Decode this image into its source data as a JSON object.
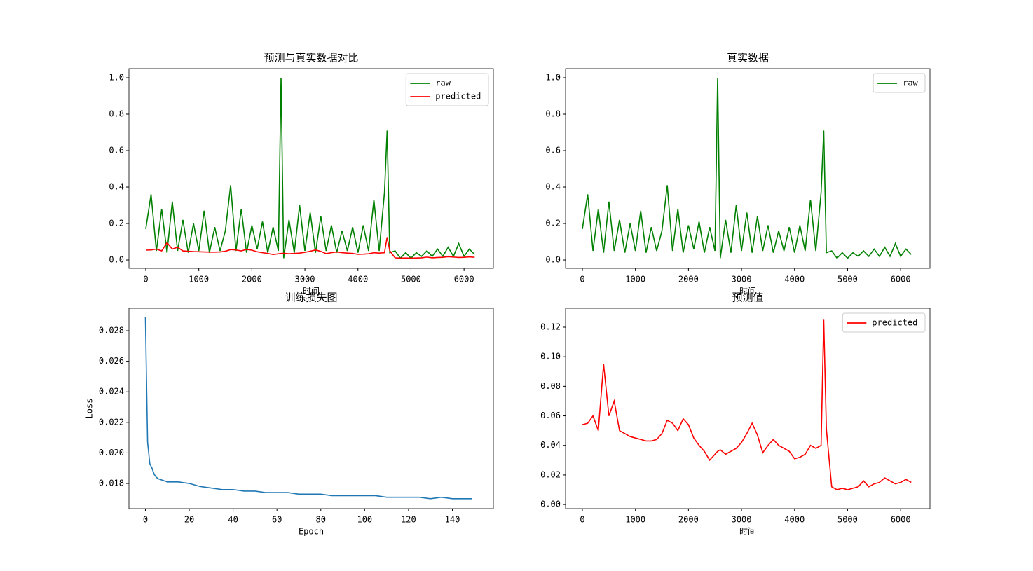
{
  "chart_data": [
    {
      "type": "line",
      "title": "预测与真实数据对比",
      "xlabel": "时间",
      "x": [
        0,
        100,
        200,
        300,
        400,
        500,
        600,
        700,
        800,
        900,
        1000,
        1100,
        1200,
        1300,
        1400,
        1500,
        1600,
        1700,
        1800,
        1900,
        2000,
        2100,
        2200,
        2300,
        2400,
        2500,
        2550,
        2600,
        2700,
        2800,
        2900,
        3000,
        3100,
        3200,
        3300,
        3400,
        3500,
        3600,
        3700,
        3800,
        3900,
        4000,
        4100,
        4200,
        4300,
        4400,
        4500,
        4550,
        4600,
        4700,
        4800,
        4900,
        5000,
        5100,
        5200,
        5300,
        5400,
        5500,
        5600,
        5700,
        5800,
        5900,
        6000,
        6100,
        6200
      ],
      "series": [
        {
          "name": "raw",
          "color": "#008000",
          "values": [
            0.17,
            0.36,
            0.05,
            0.28,
            0.04,
            0.32,
            0.05,
            0.22,
            0.04,
            0.2,
            0.05,
            0.27,
            0.04,
            0.18,
            0.05,
            0.16,
            0.41,
            0.05,
            0.28,
            0.04,
            0.19,
            0.06,
            0.21,
            0.04,
            0.18,
            0.05,
            1.0,
            0.01,
            0.22,
            0.04,
            0.3,
            0.05,
            0.26,
            0.04,
            0.24,
            0.05,
            0.19,
            0.04,
            0.16,
            0.05,
            0.18,
            0.04,
            0.19,
            0.05,
            0.33,
            0.05,
            0.37,
            0.71,
            0.04,
            0.05,
            0.01,
            0.04,
            0.01,
            0.04,
            0.02,
            0.05,
            0.02,
            0.06,
            0.02,
            0.07,
            0.02,
            0.09,
            0.02,
            0.06,
            0.03
          ]
        },
        {
          "name": "predicted",
          "color": "#ff0000",
          "values": [
            0.054,
            0.055,
            0.06,
            0.05,
            0.095,
            0.06,
            0.07,
            0.05,
            0.048,
            0.046,
            0.045,
            0.044,
            0.043,
            0.043,
            0.044,
            0.048,
            0.057,
            0.055,
            0.05,
            0.058,
            0.054,
            0.045,
            0.04,
            0.036,
            0.03,
            0.034,
            0.036,
            0.037,
            0.034,
            0.036,
            0.038,
            0.042,
            0.048,
            0.055,
            0.047,
            0.035,
            0.04,
            0.044,
            0.04,
            0.038,
            0.036,
            0.031,
            0.032,
            0.034,
            0.04,
            0.038,
            0.04,
            0.125,
            0.051,
            0.012,
            0.01,
            0.011,
            0.01,
            0.011,
            0.012,
            0.016,
            0.012,
            0.014,
            0.015,
            0.018,
            0.016,
            0.014,
            0.015,
            0.017,
            0.015
          ]
        }
      ],
      "xlim": [
        -317,
        6553
      ],
      "ylim": [
        -0.046,
        1.05
      ],
      "xticks": [
        0,
        1000,
        2000,
        3000,
        4000,
        5000,
        6000
      ],
      "yticks": [
        {
          "value": 0,
          "label": "0.0"
        },
        0.2,
        0.4,
        0.6,
        0.8,
        {
          "value": 1,
          "label": "1.0"
        }
      ],
      "legend": "upper right"
    },
    {
      "type": "line",
      "title": "真实数据",
      "xlabel": "时间",
      "x": [
        0,
        100,
        200,
        300,
        400,
        500,
        600,
        700,
        800,
        900,
        1000,
        1100,
        1200,
        1300,
        1400,
        1500,
        1600,
        1700,
        1800,
        1900,
        2000,
        2100,
        2200,
        2300,
        2400,
        2500,
        2550,
        2600,
        2700,
        2800,
        2900,
        3000,
        3100,
        3200,
        3300,
        3400,
        3500,
        3600,
        3700,
        3800,
        3900,
        4000,
        4100,
        4200,
        4300,
        4400,
        4500,
        4550,
        4600,
        4700,
        4800,
        4900,
        5000,
        5100,
        5200,
        5300,
        5400,
        5500,
        5600,
        5700,
        5800,
        5900,
        6000,
        6100,
        6200
      ],
      "series": [
        {
          "name": "raw",
          "color": "#008000",
          "values": [
            0.17,
            0.36,
            0.05,
            0.28,
            0.04,
            0.32,
            0.05,
            0.22,
            0.04,
            0.2,
            0.05,
            0.27,
            0.04,
            0.18,
            0.05,
            0.16,
            0.41,
            0.05,
            0.28,
            0.04,
            0.19,
            0.06,
            0.21,
            0.04,
            0.18,
            0.05,
            1.0,
            0.01,
            0.22,
            0.04,
            0.3,
            0.05,
            0.26,
            0.04,
            0.24,
            0.05,
            0.19,
            0.04,
            0.16,
            0.05,
            0.18,
            0.04,
            0.19,
            0.05,
            0.33,
            0.05,
            0.37,
            0.71,
            0.04,
            0.05,
            0.01,
            0.04,
            0.01,
            0.04,
            0.02,
            0.05,
            0.02,
            0.06,
            0.02,
            0.07,
            0.02,
            0.09,
            0.02,
            0.06,
            0.03
          ]
        }
      ],
      "xlim": [
        -317,
        6553
      ],
      "ylim": [
        -0.046,
        1.05
      ],
      "xticks": [
        0,
        1000,
        2000,
        3000,
        4000,
        5000,
        6000
      ],
      "yticks": [
        {
          "value": 0,
          "label": "0.0"
        },
        0.2,
        0.4,
        0.6,
        0.8,
        {
          "value": 1,
          "label": "1.0"
        }
      ],
      "legend": "upper right"
    },
    {
      "type": "line",
      "title": "训练损失图",
      "xlabel": "Epoch",
      "ylabel": "Loss",
      "x": [
        0,
        1,
        2,
        3,
        4,
        5,
        6,
        8,
        10,
        15,
        20,
        25,
        30,
        35,
        40,
        45,
        50,
        55,
        60,
        65,
        70,
        75,
        80,
        85,
        90,
        95,
        100,
        105,
        110,
        115,
        120,
        125,
        130,
        135,
        140,
        145,
        149
      ],
      "series": [
        {
          "color": "#1f77b4",
          "values": [
            0.0289,
            0.0207,
            0.0193,
            0.019,
            0.0186,
            0.0184,
            0.0183,
            0.0182,
            0.0181,
            0.0181,
            0.018,
            0.0178,
            0.0177,
            0.0176,
            0.0176,
            0.0175,
            0.0175,
            0.0174,
            0.0174,
            0.0174,
            0.0173,
            0.0173,
            0.0173,
            0.0172,
            0.0172,
            0.0172,
            0.0172,
            0.0172,
            0.0171,
            0.0171,
            0.0171,
            0.0171,
            0.017,
            0.0171,
            0.017,
            0.017,
            0.017
          ]
        }
      ],
      "xlim": [
        -7.5,
        158.7
      ],
      "ylim": [
        0.01635,
        0.02947
      ],
      "xticks": [
        0,
        20,
        40,
        60,
        80,
        100,
        120,
        140
      ],
      "yticks": [
        0.018,
        {
          "value": 0.02,
          "label": "0.020"
        },
        0.022,
        0.024,
        0.026,
        0.028
      ]
    },
    {
      "type": "line",
      "title": "预测值",
      "xlabel": "时间",
      "x": [
        0,
        100,
        200,
        300,
        400,
        500,
        600,
        700,
        800,
        900,
        1000,
        1100,
        1200,
        1300,
        1400,
        1500,
        1600,
        1700,
        1800,
        1900,
        2000,
        2100,
        2200,
        2300,
        2400,
        2500,
        2550,
        2600,
        2700,
        2800,
        2900,
        3000,
        3100,
        3200,
        3300,
        3400,
        3500,
        3600,
        3700,
        3800,
        3900,
        4000,
        4100,
        4200,
        4300,
        4400,
        4500,
        4550,
        4600,
        4700,
        4800,
        4900,
        5000,
        5100,
        5200,
        5300,
        5400,
        5500,
        5600,
        5700,
        5800,
        5900,
        6000,
        6100,
        6200
      ],
      "series": [
        {
          "name": "predicted",
          "color": "#ff0000",
          "values": [
            0.054,
            0.055,
            0.06,
            0.05,
            0.095,
            0.06,
            0.07,
            0.05,
            0.048,
            0.046,
            0.045,
            0.044,
            0.043,
            0.043,
            0.044,
            0.048,
            0.057,
            0.055,
            0.05,
            0.058,
            0.054,
            0.045,
            0.04,
            0.036,
            0.03,
            0.034,
            0.036,
            0.037,
            0.034,
            0.036,
            0.038,
            0.042,
            0.048,
            0.055,
            0.047,
            0.035,
            0.04,
            0.044,
            0.04,
            0.038,
            0.036,
            0.031,
            0.032,
            0.034,
            0.04,
            0.038,
            0.04,
            0.125,
            0.051,
            0.012,
            0.01,
            0.011,
            0.01,
            0.011,
            0.012,
            0.016,
            0.012,
            0.014,
            0.015,
            0.018,
            0.016,
            0.014,
            0.015,
            0.017,
            0.015
          ]
        }
      ],
      "xlim": [
        -317,
        6553
      ],
      "ylim": [
        -0.0028,
        0.1328
      ],
      "xticks": [
        0,
        1000,
        2000,
        3000,
        4000,
        5000,
        6000
      ],
      "yticks": [
        {
          "value": 0,
          "label": "0.00"
        },
        0.02,
        0.04,
        0.06,
        0.08,
        {
          "value": 0.1,
          "label": "0.10"
        },
        0.12
      ],
      "legend": "upper right"
    }
  ]
}
